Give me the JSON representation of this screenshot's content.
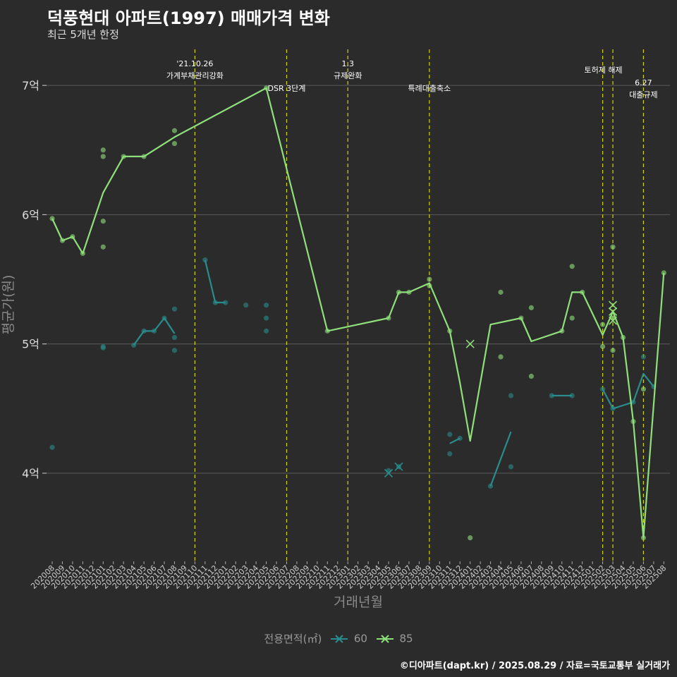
{
  "header": {
    "title": "덕풍현대 아파트(1997) 매매가격 변화",
    "subtitle": "최근 5개년 한정"
  },
  "caption": "©디아파트(dapt.kr) / 2025.08.29 / 자료=국토교통부 실거래가",
  "legend": {
    "title": "전용면적(㎡)",
    "items": [
      {
        "label": "60",
        "color": "#2a8c8c"
      },
      {
        "label": "85",
        "color": "#8fe07a"
      }
    ]
  },
  "chart_data": {
    "type": "line",
    "xlabel": "거래년월",
    "ylabel": "평균가(원)",
    "x_categories": [
      "202008",
      "202009",
      "202010",
      "202011",
      "202012",
      "202101",
      "202102",
      "202103",
      "202104",
      "202105",
      "202106",
      "202107",
      "202108",
      "202109",
      "202110",
      "202111",
      "202112",
      "202201",
      "202202",
      "202203",
      "202204",
      "202205",
      "202206",
      "202207",
      "202208",
      "202209",
      "202210",
      "202211",
      "202212",
      "202301",
      "202302",
      "202303",
      "202304",
      "202305",
      "202306",
      "202307",
      "202308",
      "202309",
      "202310",
      "202311",
      "202312",
      "202401",
      "202402",
      "202403",
      "202404",
      "202405",
      "202406",
      "202407",
      "202408",
      "202409",
      "202410",
      "202411",
      "202412",
      "202501",
      "202502",
      "202503",
      "202504",
      "202505",
      "202506",
      "202507",
      "202508"
    ],
    "y_ticks": [
      {
        "value": 4,
        "label": "4억"
      },
      {
        "value": 5,
        "label": "5억"
      },
      {
        "value": 6,
        "label": "6억"
      },
      {
        "value": 7,
        "label": "7억"
      }
    ],
    "ylim": [
      3.35,
      7.4
    ],
    "grid": true,
    "legend_position": "bottom",
    "annotations": [
      {
        "x": "202110",
        "lines": [
          "'21.10.26",
          "가계부채관리강화"
        ],
        "level": "top"
      },
      {
        "x": "202207",
        "lines": [
          "DSR 3단계"
        ],
        "level": "low"
      },
      {
        "x": "202301",
        "lines": [
          "1.3",
          "규제완화"
        ],
        "level": "top"
      },
      {
        "x": "202309",
        "lines": [
          "특례대출축소"
        ],
        "level": "low"
      },
      {
        "x": "202502",
        "lines": [
          "토허제 해제"
        ],
        "level": "mid",
        "anchor": "left"
      },
      {
        "x": "202503",
        "lines": [],
        "level": "none"
      },
      {
        "x": "202506",
        "lines": [
          "6.27",
          "대출규제"
        ],
        "level": "mid2"
      }
    ],
    "series": [
      {
        "name": "60",
        "color": "#2a8c8c",
        "line": [
          [
            [
              "202104",
              4.99
            ],
            [
              "202105",
              5.1
            ],
            [
              "202106",
              5.1
            ],
            [
              "202107",
              5.2
            ],
            [
              "202108",
              5.08
            ]
          ],
          [
            [
              "202111",
              5.65
            ],
            [
              "202112",
              5.32
            ],
            [
              "202201",
              5.32
            ]
          ],
          [
            [
              "202311",
              4.23
            ],
            [
              "202312",
              4.27
            ]
          ],
          [
            [
              "202403",
              3.9
            ],
            [
              "202405",
              4.32
            ]
          ],
          [
            [
              "202409",
              4.6
            ],
            [
              "202411",
              4.6
            ]
          ],
          [
            [
              "202502",
              4.65
            ],
            [
              "202503",
              4.5
            ],
            [
              "202505",
              4.55
            ],
            [
              "202506",
              4.77
            ],
            [
              "202507",
              4.67
            ]
          ]
        ],
        "points": [
          [
            "202008",
            4.2
          ],
          [
            "202101",
            4.97
          ],
          [
            "202101",
            4.98
          ],
          [
            "202104",
            4.99
          ],
          [
            "202105",
            5.1
          ],
          [
            "202106",
            5.1
          ],
          [
            "202107",
            5.2
          ],
          [
            "202108",
            5.05
          ],
          [
            "202108",
            4.95
          ],
          [
            "202108",
            5.27
          ],
          [
            "202111",
            5.65
          ],
          [
            "202112",
            5.32
          ],
          [
            "202201",
            5.32
          ],
          [
            "202203",
            5.3
          ],
          [
            "202205",
            5.3
          ],
          [
            "202205",
            5.2
          ],
          [
            "202205",
            5.1
          ],
          [
            "202305",
            4.02
          ],
          [
            "202306",
            4.05
          ],
          [
            "202311",
            4.3
          ],
          [
            "202311",
            4.15
          ],
          [
            "202312",
            4.27
          ],
          [
            "202403",
            3.9
          ],
          [
            "202405",
            4.05
          ],
          [
            "202405",
            4.6
          ],
          [
            "202409",
            4.6
          ],
          [
            "202411",
            4.6
          ],
          [
            "202502",
            4.65
          ],
          [
            "202503",
            4.5
          ],
          [
            "202505",
            4.55
          ],
          [
            "202506",
            4.9
          ],
          [
            "202507",
            4.67
          ]
        ],
        "crosses": [
          [
            "202305",
            4.0
          ],
          [
            "202306",
            4.05
          ]
        ]
      },
      {
        "name": "85",
        "color": "#8fe07a",
        "line": [
          [
            [
              "202008",
              5.97
            ],
            [
              "202009",
              5.8
            ],
            [
              "202010",
              5.83
            ],
            [
              "202011",
              5.7
            ],
            [
              "202101",
              6.17
            ],
            [
              "202103",
              6.45
            ],
            [
              "202105",
              6.45
            ],
            [
              "202108",
              6.6
            ],
            [
              "202205",
              6.98
            ],
            [
              "202211",
              5.1
            ],
            [
              "202305",
              5.2
            ],
            [
              "202306",
              5.4
            ],
            [
              "202307",
              5.4
            ],
            [
              "202309",
              5.47
            ],
            [
              "202311",
              5.1
            ],
            [
              "202312",
              4.7
            ],
            [
              "202401",
              4.25
            ],
            [
              "202403",
              5.15
            ],
            [
              "202406",
              5.2
            ],
            [
              "202407",
              5.02
            ],
            [
              "202410",
              5.1
            ],
            [
              "202411",
              5.4
            ],
            [
              "202412",
              5.4
            ],
            [
              "202502",
              5.07
            ],
            [
              "202503",
              5.25
            ],
            [
              "202504",
              5.05
            ],
            [
              "202505",
              4.4
            ],
            [
              "202506",
              3.5
            ],
            [
              "202508",
              5.55
            ]
          ]
        ],
        "points": [
          [
            "202008",
            5.97
          ],
          [
            "202009",
            5.8
          ],
          [
            "202010",
            5.83
          ],
          [
            "202011",
            5.7
          ],
          [
            "202101",
            6.5
          ],
          [
            "202101",
            6.45
          ],
          [
            "202101",
            5.95
          ],
          [
            "202101",
            5.75
          ],
          [
            "202103",
            6.45
          ],
          [
            "202105",
            6.45
          ],
          [
            "202108",
            6.65
          ],
          [
            "202108",
            6.55
          ],
          [
            "202205",
            6.98
          ],
          [
            "202211",
            5.1
          ],
          [
            "202305",
            5.2
          ],
          [
            "202306",
            5.4
          ],
          [
            "202307",
            5.4
          ],
          [
            "202309",
            5.5
          ],
          [
            "202309",
            5.45
          ],
          [
            "202311",
            5.1
          ],
          [
            "202401",
            3.5
          ],
          [
            "202404",
            5.4
          ],
          [
            "202404",
            4.9
          ],
          [
            "202406",
            5.2
          ],
          [
            "202407",
            5.28
          ],
          [
            "202407",
            4.75
          ],
          [
            "202410",
            5.1
          ],
          [
            "202411",
            5.6
          ],
          [
            "202411",
            5.2
          ],
          [
            "202412",
            5.4
          ],
          [
            "202502",
            4.98
          ],
          [
            "202502",
            5.15
          ],
          [
            "202503",
            5.75
          ],
          [
            "202503",
            5.2
          ],
          [
            "202503",
            4.95
          ],
          [
            "202504",
            5.05
          ],
          [
            "202505",
            4.4
          ],
          [
            "202506",
            3.5
          ],
          [
            "202506",
            4.65
          ],
          [
            "202508",
            5.55
          ]
        ],
        "crosses": [
          [
            "202401",
            5.0
          ],
          [
            "202503",
            5.3
          ],
          [
            "202503",
            5.25
          ],
          [
            "202503",
            5.18
          ]
        ]
      }
    ]
  }
}
